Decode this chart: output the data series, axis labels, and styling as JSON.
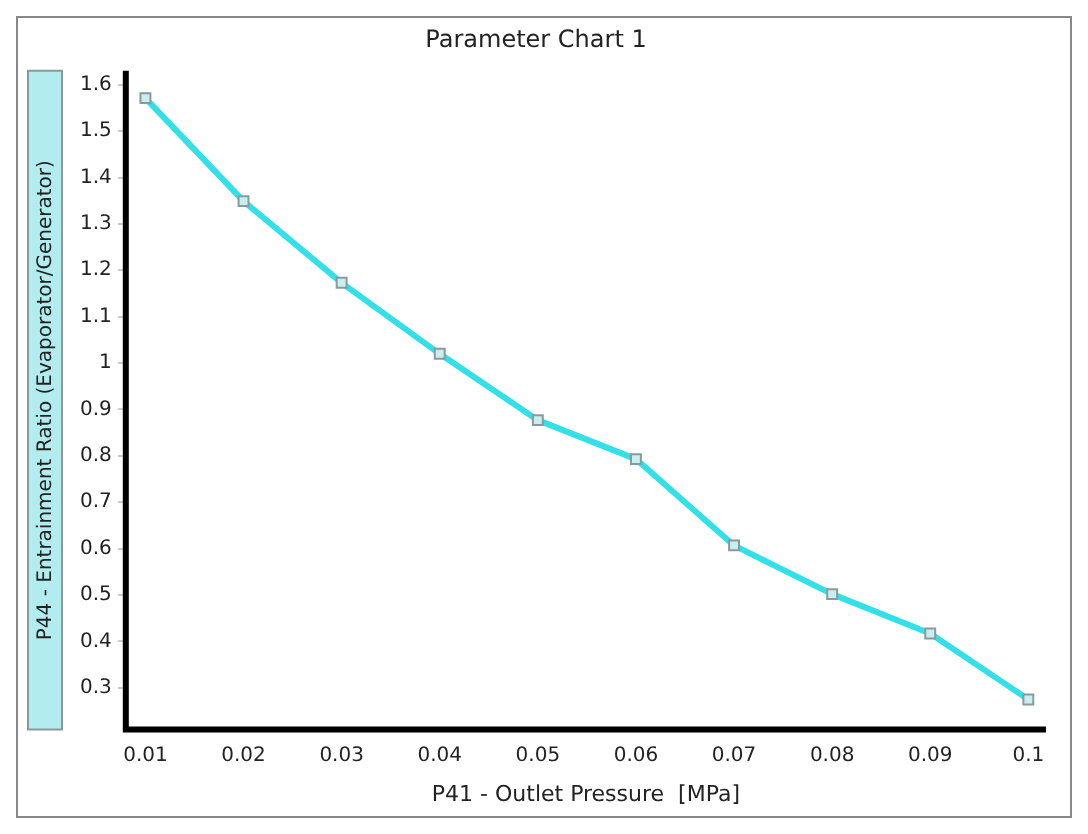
{
  "chart_data": {
    "type": "line",
    "title": "Parameter Chart 1",
    "xlabel": "P41 - Outlet Pressure  [MPa]",
    "ylabel": "P44 - Entrainment Ratio (Evaporator/Generator)",
    "x": [
      0.01,
      0.02,
      0.03,
      0.04,
      0.05,
      0.06,
      0.07,
      0.08,
      0.09,
      0.1
    ],
    "series": [
      {
        "color": "#33e0e8",
        "values": [
          1.571,
          1.349,
          1.173,
          1.02,
          0.877,
          0.793,
          0.607,
          0.502,
          0.417,
          0.275
        ]
      }
    ],
    "xlim": [
      0.008,
      0.1018
    ],
    "xticks": [
      0.01,
      0.02,
      0.03,
      0.04,
      0.05,
      0.06,
      0.07,
      0.08,
      0.09,
      0.1
    ],
    "ylim": [
      0.21,
      1.63
    ],
    "yticks": [
      0.3,
      0.4,
      0.5,
      0.6,
      0.7,
      0.8,
      0.9,
      1,
      1.1,
      1.2,
      1.3,
      1.4,
      1.5,
      1.6
    ],
    "grid": false,
    "legend": false,
    "marker": "square",
    "line_style": "solid"
  }
}
